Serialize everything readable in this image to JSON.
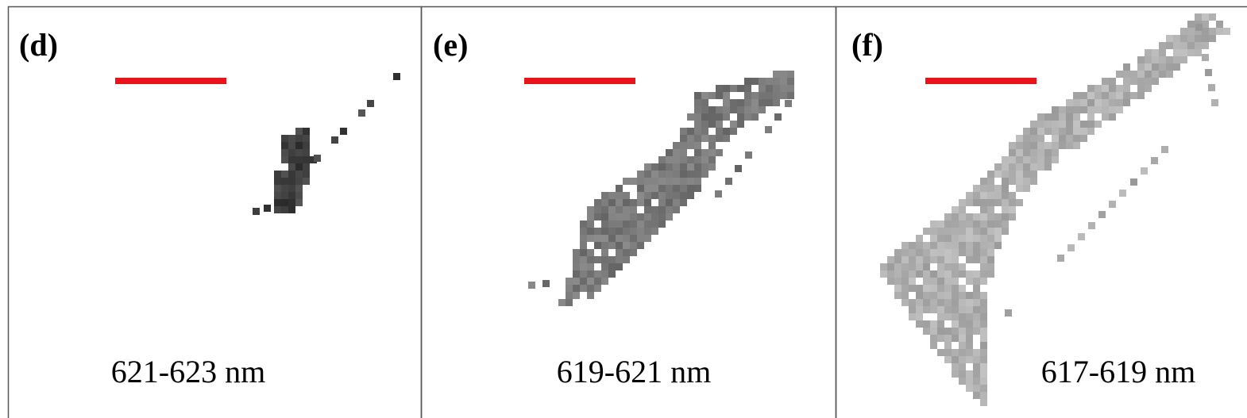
{
  "panels": [
    {
      "label": "(d)",
      "caption": "621-623 nm"
    },
    {
      "label": "(e)",
      "caption": "619-621 nm"
    },
    {
      "label": "(f)",
      "caption": "617-619 nm"
    }
  ]
}
